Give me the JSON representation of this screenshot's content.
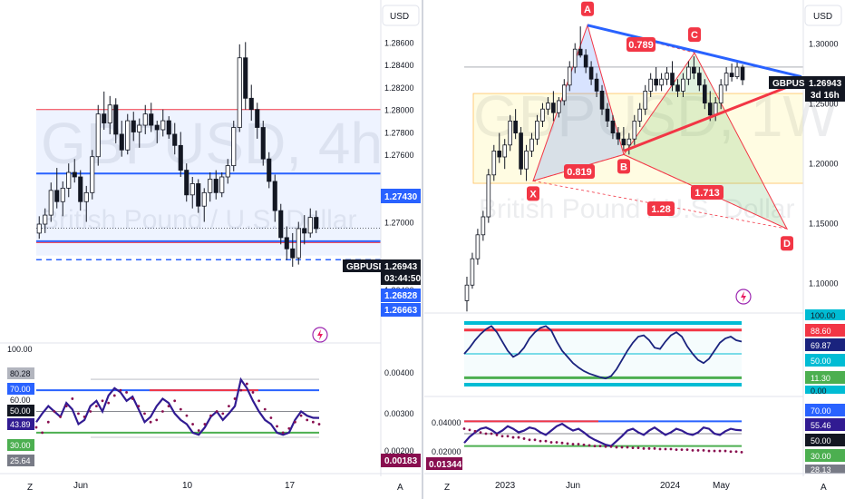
{
  "left": {
    "currency": "USD",
    "symbol_tag": "GBPUSD",
    "price": "1.26943",
    "countdown": "03:44:50",
    "watermark_symbol": "GBPUSD, 4h",
    "watermark_name": "British Pound / U.S. Dollar",
    "price_ticks": [
      "1.28600",
      "1.28400",
      "1.28200",
      "1.28000",
      "1.27800",
      "1.27600",
      "1.27200",
      "1.27000",
      "1.26400"
    ],
    "level_labels": [
      "1.27430",
      "1.26828",
      "1.26663"
    ],
    "osc_labels": [
      "80.28",
      "70.00",
      "50.00",
      "43.89",
      "30.00",
      "25.64"
    ],
    "osc_top_label": "100.00",
    "osc_mid_label": "60.00",
    "osc_right_ticks": [
      "0.00400",
      "0.00300",
      "0.00200"
    ],
    "osc_value_tag": "0.00183",
    "time_labels": [
      "Jun",
      "10",
      "17"
    ],
    "chart_data": {
      "type": "candlestick",
      "interval": "4h",
      "price_range": [
        1.261,
        1.287
      ],
      "candles_ohlc": [
        [
          1.269,
          1.2705,
          1.2685,
          1.2698
        ],
        [
          1.2698,
          1.2712,
          1.269,
          1.2706
        ],
        [
          1.2706,
          1.2735,
          1.27,
          1.2728
        ],
        [
          1.2728,
          1.2748,
          1.2712,
          1.2718
        ],
        [
          1.2718,
          1.2736,
          1.2705,
          1.273
        ],
        [
          1.273,
          1.2752,
          1.2722,
          1.2744
        ],
        [
          1.2744,
          1.2756,
          1.2735,
          1.274
        ],
        [
          1.274,
          1.2746,
          1.271,
          1.2718
        ],
        [
          1.2718,
          1.2732,
          1.27,
          1.2726
        ],
        [
          1.2726,
          1.2764,
          1.272,
          1.2758
        ],
        [
          1.2758,
          1.2804,
          1.275,
          1.2796
        ],
        [
          1.2796,
          1.2816,
          1.2782,
          1.2788
        ],
        [
          1.2788,
          1.2812,
          1.2778,
          1.2804
        ],
        [
          1.2804,
          1.281,
          1.277,
          1.2778
        ],
        [
          1.2778,
          1.279,
          1.2758,
          1.2764
        ],
        [
          1.2764,
          1.2796,
          1.276,
          1.279
        ],
        [
          1.279,
          1.2798,
          1.2772,
          1.278
        ],
        [
          1.278,
          1.2792,
          1.2766,
          1.2786
        ],
        [
          1.2786,
          1.2804,
          1.2778,
          1.2796
        ],
        [
          1.2796,
          1.2806,
          1.278,
          1.2786
        ],
        [
          1.2786,
          1.279,
          1.277,
          1.2782
        ],
        [
          1.2782,
          1.28,
          1.2776,
          1.279
        ],
        [
          1.279,
          1.2794,
          1.2774,
          1.2778
        ],
        [
          1.2778,
          1.2788,
          1.276,
          1.2768
        ],
        [
          1.2768,
          1.278,
          1.274,
          1.2746
        ],
        [
          1.2746,
          1.2752,
          1.2718,
          1.2724
        ],
        [
          1.2724,
          1.274,
          1.2712,
          1.2734
        ],
        [
          1.2734,
          1.2738,
          1.2708,
          1.2714
        ],
        [
          1.2714,
          1.273,
          1.27,
          1.2726
        ],
        [
          1.2726,
          1.2744,
          1.2718,
          1.2738
        ],
        [
          1.2738,
          1.2746,
          1.272,
          1.2726
        ],
        [
          1.2726,
          1.2744,
          1.2722,
          1.274
        ],
        [
          1.274,
          1.2756,
          1.2734,
          1.275
        ],
        [
          1.275,
          1.279,
          1.2745,
          1.2784
        ],
        [
          1.2784,
          1.2858,
          1.278,
          1.2846
        ],
        [
          1.2846,
          1.286,
          1.28,
          1.281
        ],
        [
          1.281,
          1.2822,
          1.279,
          1.28
        ],
        [
          1.28,
          1.2806,
          1.2774,
          1.2784
        ],
        [
          1.2784,
          1.279,
          1.275,
          1.2756
        ],
        [
          1.2756,
          1.2762,
          1.273,
          1.2736
        ],
        [
          1.2736,
          1.2742,
          1.27,
          1.271
        ],
        [
          1.271,
          1.2716,
          1.268,
          1.2686
        ],
        [
          1.2686,
          1.2696,
          1.2666,
          1.2676
        ],
        [
          1.2676,
          1.269,
          1.266,
          1.2668
        ],
        [
          1.2668,
          1.27,
          1.2662,
          1.2694
        ],
        [
          1.2694,
          1.2706,
          1.268,
          1.269
        ],
        [
          1.269,
          1.2712,
          1.2686,
          1.2704
        ],
        [
          1.2704,
          1.271,
          1.269,
          1.2694
        ]
      ],
      "zone": [
        1.267,
        1.28
      ],
      "levels": [
        1.2743,
        1.26828,
        1.26663
      ],
      "current_price": 1.26943,
      "oscillator": {
        "range": [
          0,
          100
        ],
        "levels": [
          80.28,
          70.0,
          50.0,
          43.89,
          30.0,
          25.64
        ],
        "line": [
          40,
          48,
          55,
          50,
          45,
          58,
          52,
          38,
          42,
          55,
          60,
          50,
          65,
          72,
          68,
          60,
          64,
          52,
          40,
          45,
          55,
          62,
          58,
          48,
          42,
          38,
          30,
          28,
          35,
          45,
          50,
          42,
          48,
          55,
          80,
          72,
          60,
          50,
          42,
          38,
          30,
          28,
          30,
          42,
          50,
          46,
          44,
          43.89
        ],
        "dots": [
          35,
          30,
          40,
          50,
          45,
          55,
          62,
          48,
          45,
          50,
          55,
          60,
          58,
          65,
          70,
          68,
          62,
          55,
          48,
          40,
          42,
          50,
          55,
          60,
          52,
          46,
          38,
          32,
          38,
          46,
          50,
          48,
          55,
          62,
          70,
          76,
          68,
          60,
          52,
          44,
          36,
          30,
          34,
          40,
          46,
          42,
          40,
          38
        ]
      }
    }
  },
  "right": {
    "currency": "USD",
    "symbol_tag": "GBPUSD",
    "price": "1.26943",
    "countdown": "3d 16h",
    "watermark_symbol": "GBPUSD, 1W",
    "watermark_name": "British Pound / U.S. Dollar",
    "price_ticks": [
      "1.30000",
      "1.25000",
      "1.20000",
      "1.15000",
      "1.10000"
    ],
    "pattern_points": [
      "A",
      "B",
      "C",
      "D",
      "X"
    ],
    "ratios": [
      "0.789",
      "0.819",
      "1.713",
      "1.28"
    ],
    "osc1_labels": [
      "100.00",
      "88.60",
      "69.87",
      "50.00",
      "11.30",
      "0.00"
    ],
    "osc2_labels": [
      "70.00",
      "55.46",
      "50.00",
      "30.00",
      "28.13"
    ],
    "osc2_left_ticks": [
      "0.04000",
      "0.02000"
    ],
    "osc2_value_tag": "0.01344",
    "time_labels": [
      "2023",
      "Jun",
      "2024",
      "May"
    ],
    "chart_data": {
      "type": "candlestick",
      "interval": "1W",
      "price_range": [
        1.08,
        1.33
      ],
      "candles_ohlc": [
        [
          1.085,
          1.105,
          1.076,
          1.098
        ],
        [
          1.098,
          1.125,
          1.095,
          1.12
        ],
        [
          1.12,
          1.145,
          1.115,
          1.14
        ],
        [
          1.14,
          1.16,
          1.135,
          1.155
        ],
        [
          1.155,
          1.195,
          1.15,
          1.19
        ],
        [
          1.19,
          1.215,
          1.185,
          1.21
        ],
        [
          1.21,
          1.225,
          1.2,
          1.205
        ],
        [
          1.205,
          1.22,
          1.195,
          1.215
        ],
        [
          1.215,
          1.24,
          1.21,
          1.235
        ],
        [
          1.235,
          1.245,
          1.22,
          1.225
        ],
        [
          1.225,
          1.23,
          1.19,
          1.195
        ],
        [
          1.195,
          1.215,
          1.185,
          1.21
        ],
        [
          1.21,
          1.225,
          1.205,
          1.22
        ],
        [
          1.22,
          1.24,
          1.215,
          1.235
        ],
        [
          1.235,
          1.25,
          1.23,
          1.245
        ],
        [
          1.245,
          1.255,
          1.24,
          1.25
        ],
        [
          1.25,
          1.26,
          1.235,
          1.242
        ],
        [
          1.242,
          1.255,
          1.238,
          1.252
        ],
        [
          1.252,
          1.27,
          1.248,
          1.265
        ],
        [
          1.265,
          1.285,
          1.26,
          1.28
        ],
        [
          1.28,
          1.3,
          1.275,
          1.295
        ],
        [
          1.295,
          1.314,
          1.288,
          1.29
        ],
        [
          1.29,
          1.295,
          1.275,
          1.28
        ],
        [
          1.28,
          1.285,
          1.265,
          1.27
        ],
        [
          1.27,
          1.275,
          1.255,
          1.26
        ],
        [
          1.26,
          1.265,
          1.24,
          1.245
        ],
        [
          1.245,
          1.25,
          1.23,
          1.235
        ],
        [
          1.235,
          1.24,
          1.22,
          1.225
        ],
        [
          1.225,
          1.23,
          1.215,
          1.22
        ],
        [
          1.22,
          1.23,
          1.21,
          1.215
        ],
        [
          1.215,
          1.225,
          1.207,
          1.22
        ],
        [
          1.22,
          1.24,
          1.215,
          1.235
        ],
        [
          1.235,
          1.25,
          1.23,
          1.245
        ],
        [
          1.245,
          1.265,
          1.24,
          1.26
        ],
        [
          1.26,
          1.275,
          1.255,
          1.27
        ],
        [
          1.27,
          1.28,
          1.26,
          1.265
        ],
        [
          1.265,
          1.275,
          1.26,
          1.27
        ],
        [
          1.27,
          1.28,
          1.265,
          1.275
        ],
        [
          1.275,
          1.285,
          1.26,
          1.265
        ],
        [
          1.265,
          1.27,
          1.255,
          1.26
        ],
        [
          1.26,
          1.275,
          1.255,
          1.27
        ],
        [
          1.27,
          1.285,
          1.265,
          1.28
        ],
        [
          1.28,
          1.289,
          1.27,
          1.275
        ],
        [
          1.275,
          1.28,
          1.26,
          1.265
        ],
        [
          1.265,
          1.27,
          1.245,
          1.25
        ],
        [
          1.25,
          1.26,
          1.235,
          1.24
        ],
        [
          1.24,
          1.255,
          1.235,
          1.25
        ],
        [
          1.25,
          1.27,
          1.245,
          1.265
        ],
        [
          1.265,
          1.28,
          1.26,
          1.275
        ],
        [
          1.275,
          1.283,
          1.268,
          1.272
        ],
        [
          1.272,
          1.285,
          1.27,
          1.28
        ],
        [
          1.28,
          1.282,
          1.265,
          1.2694
        ]
      ],
      "harmonic": {
        "X": 1.185,
        "A": 1.315,
        "B": 1.207,
        "C": 1.292,
        "D": 1.145,
        "ratios": {
          "XB": 0.819,
          "AC": 0.789,
          "BD": 1.713,
          "XD": 1.28
        }
      },
      "zone": [
        1.183,
        1.258
      ],
      "current_price": 1.26943,
      "oscillator1": {
        "range": [
          0,
          100
        ],
        "levels": [
          88.6,
          69.87,
          50.0,
          11.3
        ],
        "line": [
          50,
          60,
          72,
          82,
          90,
          95,
          85,
          70,
          55,
          45,
          50,
          60,
          75,
          85,
          92,
          95,
          88,
          70,
          55,
          45,
          35,
          28,
          22,
          18,
          15,
          12,
          10,
          14,
          25,
          40,
          55,
          68,
          78,
          80,
          72,
          60,
          58,
          70,
          80,
          85,
          78,
          62,
          50,
          40,
          35,
          42,
          55,
          68,
          75,
          78,
          72,
          69.87
        ]
      },
      "oscillator2": {
        "range": [
          0,
          100
        ],
        "levels": [
          70.0,
          55.46,
          50.0,
          30.0
        ],
        "line": [
          35,
          45,
          52,
          58,
          60,
          56,
          50,
          55,
          62,
          58,
          52,
          55,
          60,
          58,
          52,
          48,
          55,
          62,
          66,
          60,
          55,
          58,
          52,
          45,
          40,
          36,
          32,
          30,
          38,
          46,
          55,
          58,
          52,
          48,
          55,
          60,
          54,
          48,
          52,
          58,
          55,
          50,
          48,
          52,
          60,
          58,
          50,
          48,
          54,
          58,
          56,
          55.46
        ],
        "dots": [
          58,
          56,
          54,
          52,
          50,
          50,
          48,
          46,
          46,
          44,
          44,
          42,
          40,
          40,
          38,
          38,
          36,
          36,
          35,
          34,
          33,
          33,
          32,
          31,
          30,
          30,
          29,
          29,
          28,
          28,
          28,
          27,
          27,
          26,
          26,
          26,
          25,
          25,
          25,
          24,
          24,
          24,
          23,
          23,
          23,
          22,
          22,
          22,
          22,
          21,
          21,
          20
        ]
      }
    }
  }
}
